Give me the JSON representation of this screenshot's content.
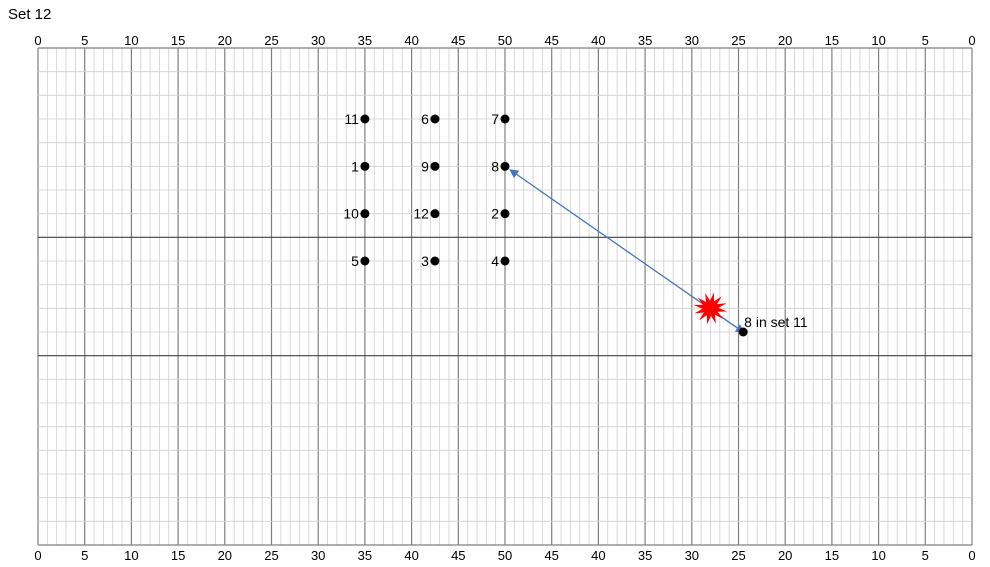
{
  "title": "Set 12",
  "yard_labels": [
    "0",
    "5",
    "10",
    "15",
    "20",
    "25",
    "30",
    "35",
    "40",
    "45",
    "50",
    "45",
    "40",
    "35",
    "30",
    "25",
    "20",
    "15",
    "10",
    "5",
    "0"
  ],
  "performers": [
    {
      "label": "11",
      "x": 35,
      "y": 3
    },
    {
      "label": "6",
      "x": 42.5,
      "y": 3
    },
    {
      "label": "7",
      "x": 50,
      "y": 3
    },
    {
      "label": "1",
      "x": 35,
      "y": 5
    },
    {
      "label": "9",
      "x": 42.5,
      "y": 5
    },
    {
      "label": "8",
      "x": 50,
      "y": 5
    },
    {
      "label": "10",
      "x": 35,
      "y": 7
    },
    {
      "label": "12",
      "x": 42.5,
      "y": 7
    },
    {
      "label": "2",
      "x": 50,
      "y": 7
    },
    {
      "label": "5",
      "x": 35,
      "y": 9
    },
    {
      "label": "3",
      "x": 42.5,
      "y": 9
    },
    {
      "label": "4",
      "x": 50,
      "y": 9
    }
  ],
  "previous_position": {
    "label": "8 in set 11",
    "x": 75.5,
    "y": 12
  },
  "collision_marker": {
    "icon": "collision-burst-icon",
    "color": "#ff0000",
    "x": 72,
    "y": 11
  },
  "arrow_color": "#4472c4"
}
